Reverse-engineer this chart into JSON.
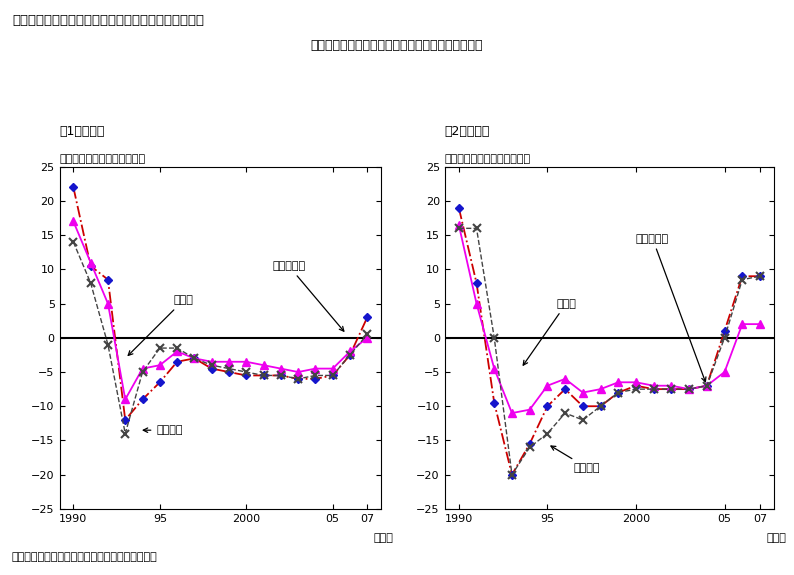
{
  "title": "第１－３－８図　地価公示（住宅地、商業地）の動向",
  "subtitle": "住宅地、商業地ともに全国平均で１６年振りの上昇",
  "panel1_title": "（1）住宅地",
  "panel2_title": "（2）商業地",
  "panel1_ylabel": "（住宅地地価の前年比、％）",
  "panel2_ylabel": "（商業地地価の前年比、％）",
  "xlabel": "（年）",
  "footer": "（備考）　国土交通省「地価公示」により作成。",
  "label_sanda": "三大都市圈",
  "label_chiho": "地方圈",
  "label_zenkoku": "全国平均",
  "years": [
    1990,
    1991,
    1992,
    1993,
    1994,
    1995,
    1996,
    1997,
    1998,
    1999,
    2000,
    2001,
    2002,
    2003,
    2004,
    2005,
    2006,
    2007
  ],
  "res_sanda": [
    22.0,
    10.5,
    8.5,
    -12.0,
    -9.0,
    -6.5,
    -3.5,
    -3.0,
    -4.5,
    -5.0,
    -5.5,
    -5.5,
    -5.5,
    -6.0,
    -6.0,
    -5.5,
    -2.5,
    3.0
  ],
  "res_chiho": [
    17.0,
    11.0,
    5.0,
    -9.0,
    -4.5,
    -4.0,
    -2.0,
    -3.0,
    -3.5,
    -3.5,
    -3.5,
    -4.0,
    -4.5,
    -5.0,
    -4.5,
    -4.5,
    -2.0,
    0.0
  ],
  "res_zenkoku": [
    14.0,
    8.0,
    -1.0,
    -14.0,
    -5.0,
    -1.5,
    -1.5,
    -3.0,
    -4.0,
    -4.5,
    -5.0,
    -5.5,
    -5.5,
    -6.0,
    -5.5,
    -5.5,
    -2.5,
    0.5
  ],
  "com_sanda": [
    19.0,
    8.0,
    -9.5,
    -20.0,
    -15.5,
    -10.0,
    -7.5,
    -10.0,
    -10.0,
    -8.0,
    -7.0,
    -7.5,
    -7.5,
    -7.5,
    -7.0,
    1.0,
    9.0,
    9.0
  ],
  "com_chiho": [
    16.5,
    5.0,
    -4.5,
    -11.0,
    -10.5,
    -7.0,
    -6.0,
    -8.0,
    -7.5,
    -6.5,
    -6.5,
    -7.0,
    -7.0,
    -7.5,
    -7.0,
    -5.0,
    2.0,
    2.0
  ],
  "com_zenkoku": [
    16.0,
    16.0,
    0.0,
    -20.0,
    -16.0,
    -14.0,
    -11.0,
    -12.0,
    -10.0,
    -8.0,
    -7.5,
    -7.5,
    -7.5,
    -7.5,
    -7.0,
    0.0,
    8.5,
    9.0
  ],
  "ylim": [
    -25,
    25
  ],
  "yticks": [
    -25,
    -20,
    -15,
    -10,
    -5,
    0,
    5,
    10,
    15,
    20,
    25
  ],
  "xticks": [
    1990,
    1995,
    2000,
    2005,
    2007
  ],
  "xticklabels": [
    "1990",
    "95",
    "2000",
    "05",
    "07"
  ],
  "color_sanda_line": "#cc0000",
  "color_sanda_marker": "#1515cc",
  "color_chiho": "#ee00ee",
  "color_zenkoku": "#444444",
  "bg_color": "#ffffff"
}
